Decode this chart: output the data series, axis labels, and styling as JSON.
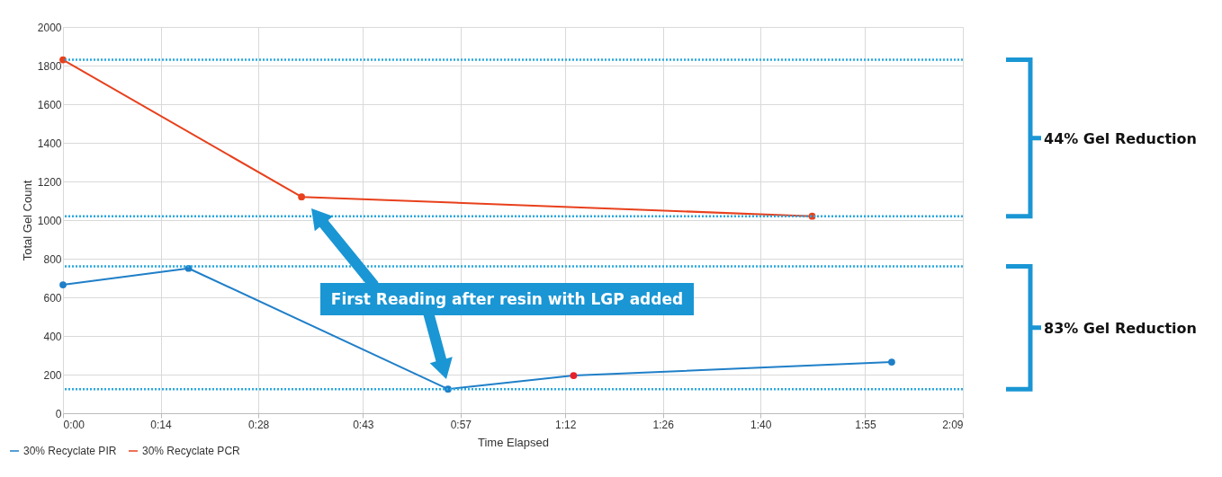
{
  "chart_data": {
    "type": "line",
    "xlabel": "Time Elapsed",
    "ylabel": "Total Gel Count",
    "xlim": [
      0,
      2.15
    ],
    "ylim": [
      0,
      2000
    ],
    "xticks": [
      {
        "value": 0,
        "label": "0:00"
      },
      {
        "value": 0.2333,
        "label": "0:14"
      },
      {
        "value": 0.4667,
        "label": "0:28"
      },
      {
        "value": 0.7167,
        "label": "0:43"
      },
      {
        "value": 0.95,
        "label": "0:57"
      },
      {
        "value": 1.2,
        "label": "1:12"
      },
      {
        "value": 1.4333,
        "label": "1:26"
      },
      {
        "value": 1.6667,
        "label": "1:40"
      },
      {
        "value": 1.9167,
        "label": "1:55"
      },
      {
        "value": 2.15,
        "label": "2:09"
      }
    ],
    "yticks": [
      0,
      200,
      400,
      600,
      800,
      1000,
      1200,
      1400,
      1600,
      1800,
      2000
    ],
    "series": [
      {
        "name": "30% Recyclate PIR",
        "color": "#1f7fc8",
        "colors": [
          "#1f7fc8",
          "#1f7fc8",
          "#1f7fc8",
          "#e8202a",
          "#1f7fc8"
        ],
        "x": [
          0,
          0.3,
          0.92,
          1.22,
          1.98
        ],
        "values": [
          665,
          750,
          125,
          195,
          265
        ]
      },
      {
        "name": "30% Recyclate PCR",
        "color": "#e8401c",
        "x": [
          0,
          0.57,
          1.79
        ],
        "values": [
          1830,
          1120,
          1020
        ]
      }
    ],
    "ref_lines": [
      {
        "axis": "y",
        "value": 1830,
        "color": "#29a8e0",
        "line_style": "dotted"
      },
      {
        "axis": "y",
        "value": 1020,
        "color": "#29a8e0",
        "line_style": "dotted"
      },
      {
        "axis": "y",
        "value": 760,
        "color": "#29a8e0",
        "line_style": "dotted"
      },
      {
        "axis": "y",
        "value": 125,
        "color": "#29a8e0",
        "line_style": "dotted"
      }
    ],
    "annotations": [
      "First Reading after resin with LGP added",
      "44% Gel Reduction",
      "83% Gel Reduction"
    ],
    "grid": true,
    "legend": "bottom left",
    "marker": "circle",
    "line_style": "solid"
  }
}
